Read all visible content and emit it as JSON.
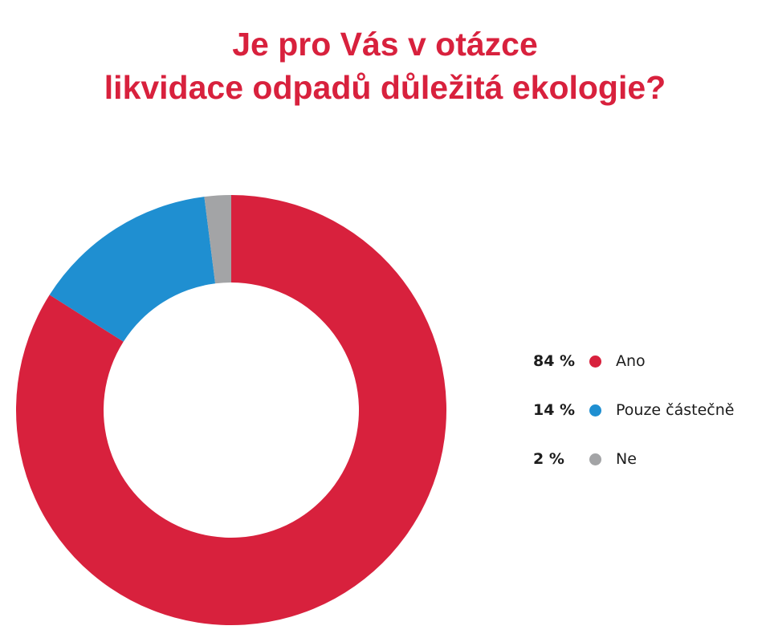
{
  "chart_data": {
    "type": "pie",
    "title": "Je pro Vás v otázce likvidace odpadů důležitá ekologie?",
    "title_lines": [
      "Je pro Vás v otázce",
      "likvidace odpadů důležitá ekologie?"
    ],
    "categories": [
      "Ano",
      "Pouze částečně",
      "Ne"
    ],
    "values": [
      84,
      14,
      2
    ],
    "value_labels": [
      "84 %",
      "14 %",
      "2 %"
    ],
    "colors": [
      "#d8213d",
      "#1f8fd1",
      "#a3a4a6"
    ],
    "donut": true,
    "legend_position": "right"
  }
}
